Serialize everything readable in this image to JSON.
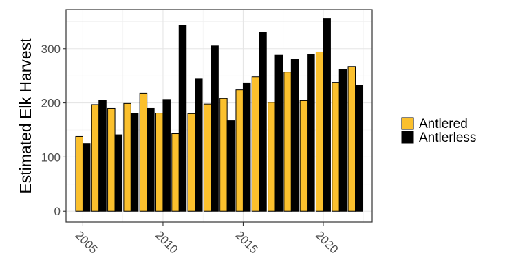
{
  "chart_data": {
    "type": "bar",
    "ylabel": "Estimated Elk Harvest",
    "xlabel": "",
    "ylim": [
      0,
      360
    ],
    "yticks": [
      0,
      100,
      200,
      300
    ],
    "xticks": [
      2005,
      2010,
      2015,
      2020
    ],
    "grid": true,
    "legend_position": "right",
    "colors": {
      "Antlered": "#FBC02D",
      "Antlerless": "#000000"
    },
    "x": [
      2005,
      2006,
      2007,
      2008,
      2009,
      2010,
      2011,
      2012,
      2013,
      2014,
      2015,
      2016,
      2017,
      2018,
      2019,
      2020,
      2021,
      2022
    ],
    "series": [
      {
        "name": "Antlered",
        "values": [
          138,
          197,
          190,
          199,
          218,
          181,
          143,
          180,
          198,
          208,
          224,
          248,
          201,
          257,
          204,
          294,
          238,
          267
        ]
      },
      {
        "name": "Antlerless",
        "values": [
          125,
          204,
          141,
          181,
          190,
          206,
          343,
          244,
          305,
          167,
          237,
          330,
          288,
          280,
          289,
          356,
          262,
          233
        ]
      }
    ]
  }
}
